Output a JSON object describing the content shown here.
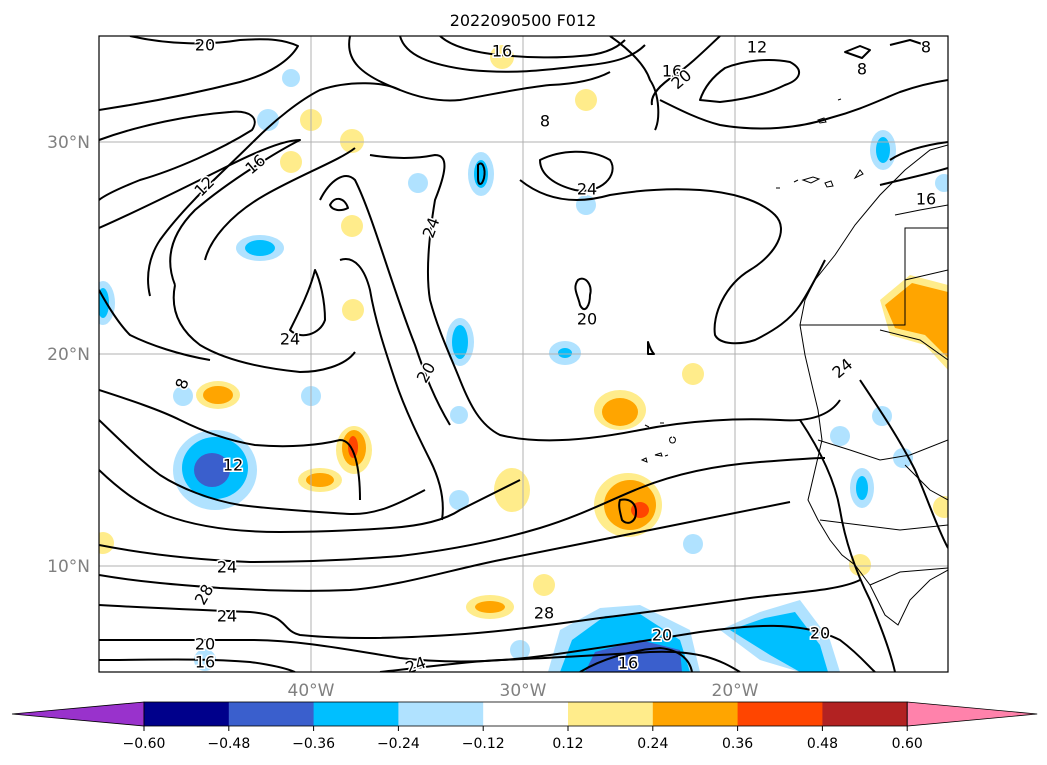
{
  "chart_data": {
    "type": "contour-map",
    "title": "2022090500 F012",
    "x_ticks": [
      "40°W",
      "30°W",
      "20°W"
    ],
    "y_ticks": [
      "30°N",
      "20°N",
      "10°N"
    ],
    "lon_range": [
      -50,
      -10
    ],
    "lat_range": [
      5,
      35
    ],
    "grid": true,
    "colorbar": {
      "orientation": "horizontal",
      "extend": "both",
      "levels": [
        "-0.60",
        "-0.48",
        "-0.36",
        "-0.24",
        "-0.12",
        "0.12",
        "0.24",
        "0.36",
        "0.48",
        "0.60"
      ],
      "colors": [
        "#9932cc",
        "#00008b",
        "#3a5fcd",
        "#00bfff",
        "#b0e2ff",
        "#ffffff",
        "#ffec8b",
        "#ffa500",
        "#ff4500",
        "#b22222",
        "#ff82ab"
      ]
    },
    "contour_labels": [
      "20",
      "16",
      "16",
      "12",
      "8",
      "8",
      "8",
      "20",
      "12",
      "16",
      "24",
      "24",
      "16",
      "24",
      "20",
      "20",
      "24",
      "8",
      "12",
      "24",
      "28",
      "24",
      "28",
      "20",
      "16",
      "24",
      "16",
      "20",
      "20"
    ]
  }
}
